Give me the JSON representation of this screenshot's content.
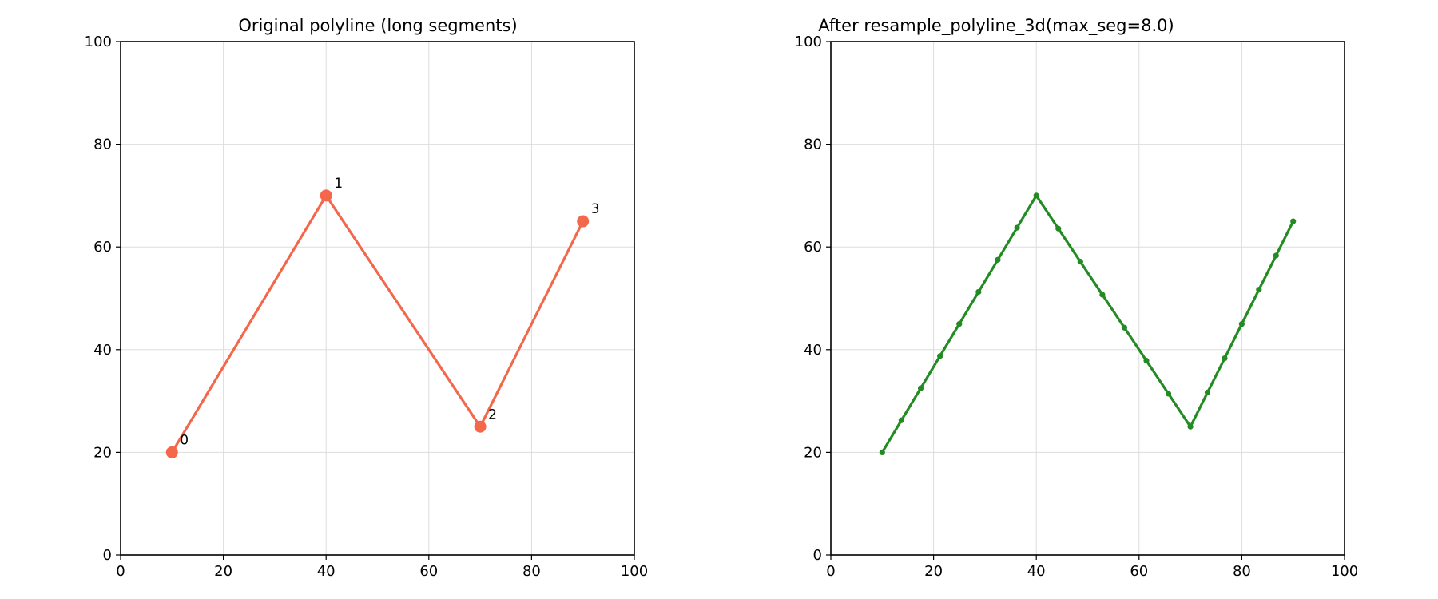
{
  "chart_data": [
    {
      "type": "line",
      "title": "Original polyline (long segments)",
      "xlabel": "",
      "ylabel": "",
      "xlim": [
        0,
        100
      ],
      "ylim": [
        0,
        100
      ],
      "xticks": [
        "0",
        "20",
        "40",
        "60",
        "80",
        "100"
      ],
      "yticks": [
        "0",
        "20",
        "40",
        "60",
        "80",
        "100"
      ],
      "grid": true,
      "color": "#f4674a",
      "marker": "large-circle",
      "x": [
        10,
        40,
        70,
        90
      ],
      "y": [
        20,
        70,
        25,
        65
      ],
      "point_labels": [
        "0",
        "1",
        "2",
        "3"
      ]
    },
    {
      "type": "line",
      "title": "After resample_polyline_3d(max_seg=8.0)",
      "xlabel": "",
      "ylabel": "",
      "xlim": [
        0,
        100
      ],
      "ylim": [
        0,
        100
      ],
      "xticks": [
        "0",
        "20",
        "40",
        "60",
        "80",
        "100"
      ],
      "yticks": [
        "0",
        "20",
        "40",
        "60",
        "80",
        "100"
      ],
      "grid": true,
      "color": "#228b22",
      "marker": "small-dot",
      "x": [
        10,
        13.75,
        17.5,
        21.25,
        25,
        28.75,
        32.5,
        36.25,
        40,
        44.29,
        48.57,
        52.86,
        57.14,
        61.43,
        65.71,
        70,
        73.33,
        76.67,
        80,
        83.33,
        86.67,
        90
      ],
      "y": [
        20,
        26.25,
        32.5,
        38.75,
        45,
        51.25,
        57.5,
        63.75,
        70,
        63.57,
        57.14,
        50.71,
        44.29,
        37.86,
        31.43,
        25,
        31.67,
        38.33,
        45,
        51.67,
        58.33,
        65
      ],
      "point_labels": []
    }
  ]
}
